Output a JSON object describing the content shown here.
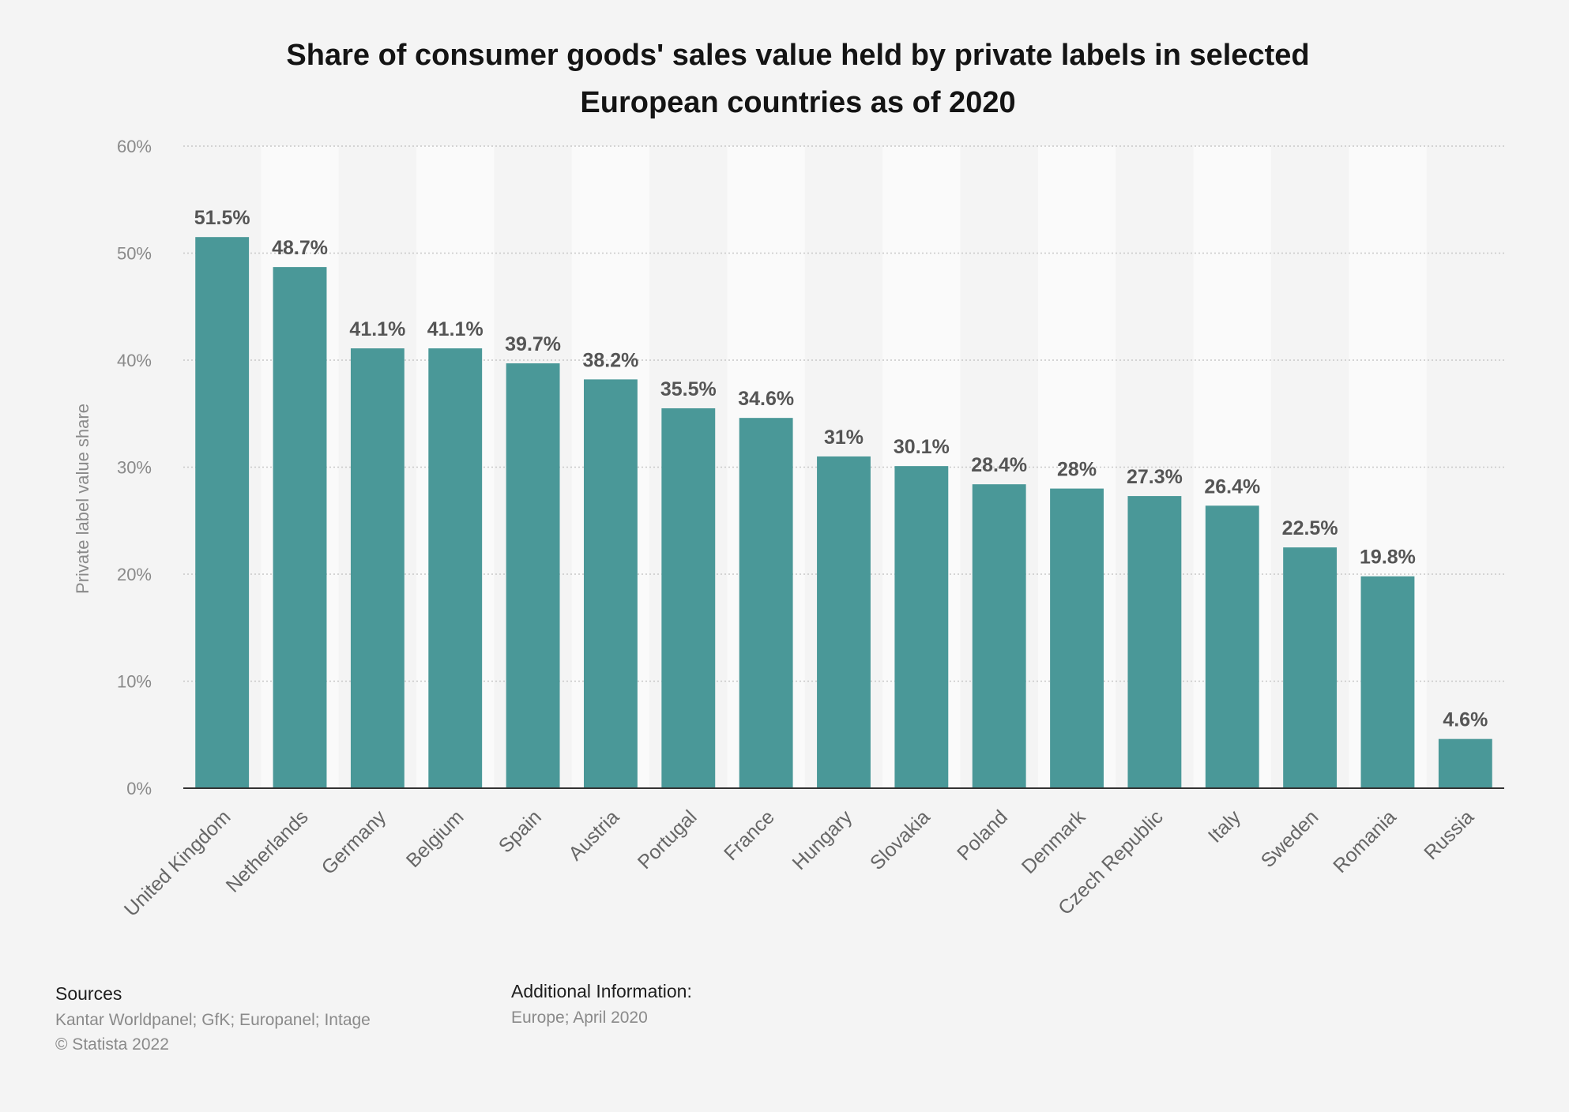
{
  "chart_data": {
    "type": "bar",
    "title": [
      "Share of consumer goods' sales value held by private labels in selected",
      "European countries as of 2020"
    ],
    "ylabel": "Private label value share",
    "xlabel": "",
    "ylim": [
      0,
      60
    ],
    "y_ticks": [
      "0%",
      "10%",
      "20%",
      "30%",
      "40%",
      "50%",
      "60%"
    ],
    "grid": true,
    "bar_color": "#4a9898",
    "categories": [
      "United Kingdom",
      "Netherlands",
      "Germany",
      "Belgium",
      "Spain",
      "Austria",
      "Portugal",
      "France",
      "Hungary",
      "Slovakia",
      "Poland",
      "Denmark",
      "Czech Republic",
      "Italy",
      "Sweden",
      "Romania",
      "Russia"
    ],
    "values": [
      51.5,
      48.7,
      41.1,
      41.1,
      39.7,
      38.2,
      35.5,
      34.6,
      31,
      30.1,
      28.4,
      28,
      27.3,
      26.4,
      22.5,
      19.8,
      4.6
    ],
    "value_labels": [
      "51.5%",
      "48.7%",
      "41.1%",
      "41.1%",
      "39.7%",
      "38.2%",
      "35.5%",
      "34.6%",
      "31%",
      "30.1%",
      "28.4%",
      "28%",
      "27.3%",
      "26.4%",
      "22.5%",
      "19.8%",
      "4.6%"
    ]
  },
  "footer": {
    "sources_heading": "Sources",
    "sources_text": "Kantar Worldpanel; GfK; Europanel; Intage",
    "copyright": "© Statista 2022",
    "additional_heading": "Additional Information:",
    "additional_text": "Europe; April 2020"
  }
}
